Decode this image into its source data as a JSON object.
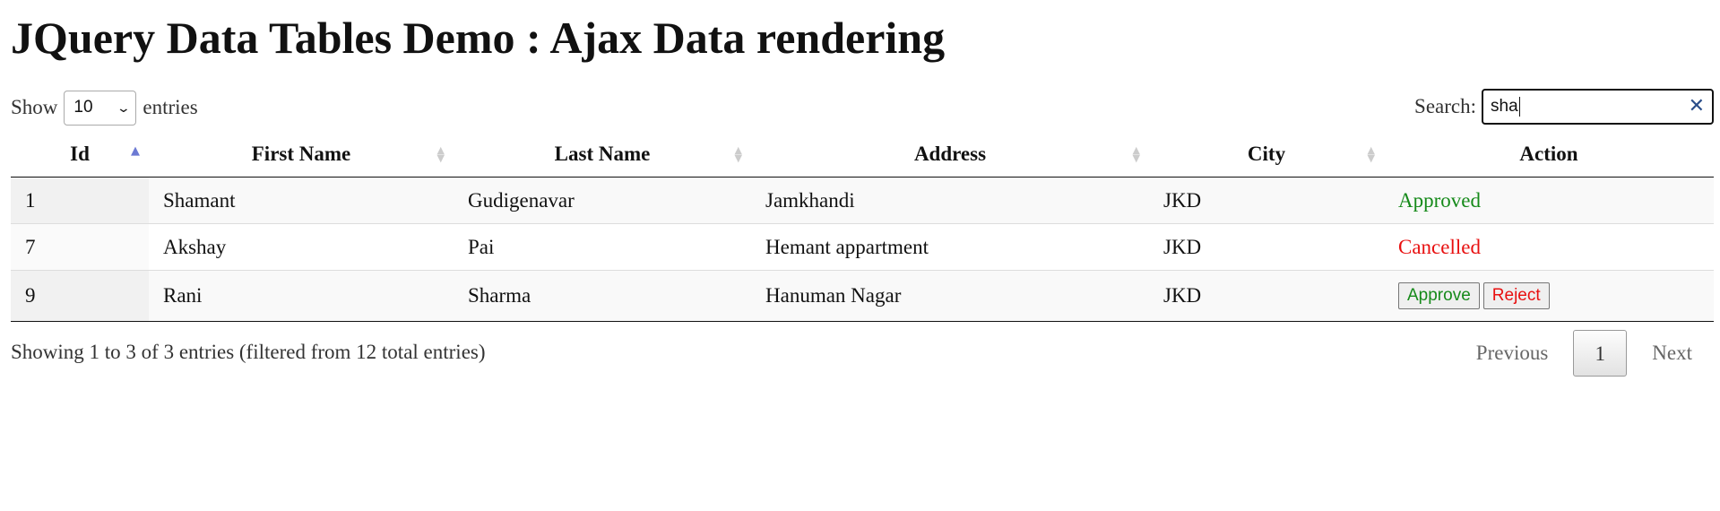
{
  "page": {
    "title": "JQuery Data Tables Demo : Ajax Data rendering"
  },
  "length": {
    "show_label": "Show",
    "selected": "10",
    "entries_label": "entries"
  },
  "search": {
    "label": "Search:",
    "value": "sha"
  },
  "table": {
    "columns": [
      "Id",
      "First Name",
      "Last Name",
      "Address",
      "City",
      "Action"
    ],
    "sorted_column": "Id",
    "sort_direction": "ascending",
    "rows": [
      {
        "id": "1",
        "first": "Shamant",
        "last": "Gudigenavar",
        "address": "Jamkhandi",
        "city": "JKD",
        "status": "Approved"
      },
      {
        "id": "7",
        "first": "Akshay",
        "last": "Pai",
        "address": "Hemant appartment",
        "city": "JKD",
        "status": "Cancelled"
      },
      {
        "id": "9",
        "first": "Rani",
        "last": "Sharma",
        "address": "Hanuman Nagar",
        "city": "JKD",
        "actions": [
          "Approve",
          "Reject"
        ]
      }
    ]
  },
  "footer": {
    "info": "Showing 1 to 3 of 3 entries (filtered from 12 total entries)",
    "previous": "Previous",
    "current_page": "1",
    "next": "Next"
  },
  "colors": {
    "approved": "#168a1a",
    "cancelled": "#e81010",
    "sort_active": "#6c7ad3"
  }
}
